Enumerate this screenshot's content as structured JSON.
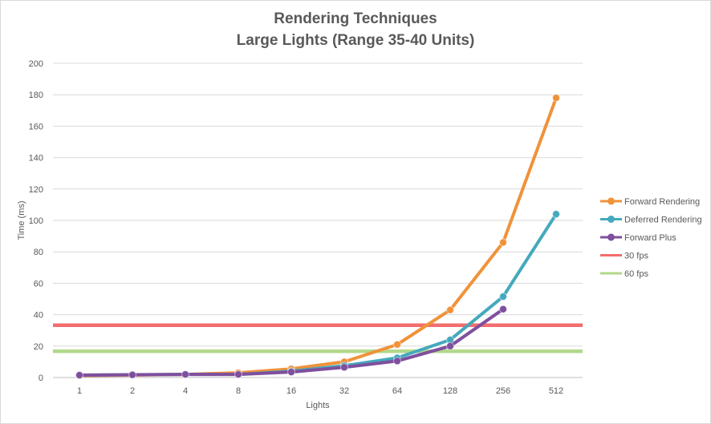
{
  "chart_data": {
    "type": "line",
    "title": "Rendering Techniques",
    "subtitle": "Large Lights (Range 35-40 Units)",
    "xlabel": "Lights",
    "ylabel": "Time (ms)",
    "categories": [
      "1",
      "2",
      "4",
      "8",
      "16",
      "32",
      "64",
      "128",
      "256",
      "512"
    ],
    "ylim": [
      0,
      200
    ],
    "yticks": [
      0,
      20,
      40,
      60,
      80,
      100,
      120,
      140,
      160,
      180,
      200
    ],
    "grid": true,
    "legend_position": "right",
    "series": [
      {
        "name": "Forward Rendering",
        "color": "#f0923a",
        "marker": true,
        "values": [
          1.2,
          1.5,
          2,
          3,
          5.5,
          10,
          21,
          43,
          86,
          178
        ]
      },
      {
        "name": "Deferred Rendering",
        "color": "#44a9bd",
        "marker": true,
        "values": [
          1.5,
          1.8,
          2,
          2,
          4,
          7.5,
          12.5,
          24,
          51.5,
          104
        ]
      },
      {
        "name": "Forward Plus",
        "color": "#7f4f9e",
        "marker": true,
        "values": [
          1.5,
          1.7,
          2,
          2,
          3.5,
          6.5,
          10.5,
          20,
          43.5,
          null
        ]
      },
      {
        "name": "30 fps",
        "color": "#f26d6d",
        "marker": false,
        "constant": 33.3
      },
      {
        "name": "60 fps",
        "color": "#b2d88a",
        "marker": false,
        "constant": 16.7
      }
    ]
  }
}
